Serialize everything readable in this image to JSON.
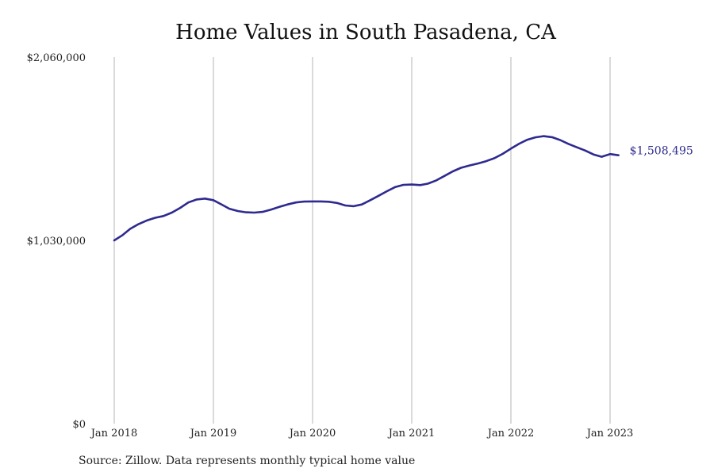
{
  "chart_data": {
    "type": "line",
    "title": "Home Values in South Pasadena, CA",
    "xlabel": "",
    "ylabel": "",
    "ylim": [
      0,
      2060000
    ],
    "y_ticks": [
      "$0",
      "$1,030,000",
      "$2,060,000"
    ],
    "x_ticks": [
      "Jan 2018",
      "Jan 2019",
      "Jan 2020",
      "Jan 2021",
      "Jan 2022",
      "Jan 2023"
    ],
    "grid": "vertical",
    "line_color": "#2e2a8f",
    "end_label": "$1,508,495",
    "x_dates": [
      "2018-01",
      "2018-02",
      "2018-03",
      "2018-04",
      "2018-05",
      "2018-06",
      "2018-07",
      "2018-08",
      "2018-09",
      "2018-10",
      "2018-11",
      "2018-12",
      "2019-01",
      "2019-02",
      "2019-03",
      "2019-04",
      "2019-05",
      "2019-06",
      "2019-07",
      "2019-08",
      "2019-09",
      "2019-10",
      "2019-11",
      "2019-12",
      "2020-01",
      "2020-02",
      "2020-03",
      "2020-04",
      "2020-05",
      "2020-06",
      "2020-07",
      "2020-08",
      "2020-09",
      "2020-10",
      "2020-11",
      "2020-12",
      "2021-01",
      "2021-02",
      "2021-03",
      "2021-04",
      "2021-05",
      "2021-06",
      "2021-07",
      "2021-08",
      "2021-09",
      "2021-10",
      "2021-11",
      "2021-12",
      "2022-01",
      "2022-02",
      "2022-03",
      "2022-04",
      "2022-05",
      "2022-06",
      "2022-07",
      "2022-08",
      "2022-09",
      "2022-10",
      "2022-11",
      "2022-12",
      "2023-01",
      "2023-02"
    ],
    "values": [
      1030000,
      1060000,
      1095000,
      1122000,
      1142000,
      1157000,
      1167000,
      1186000,
      1213000,
      1243000,
      1260000,
      1265000,
      1256000,
      1231000,
      1208000,
      1195000,
      1188000,
      1186000,
      1190000,
      1203000,
      1218000,
      1232000,
      1243000,
      1248000,
      1249000,
      1249000,
      1247000,
      1240000,
      1226000,
      1222000,
      1232000,
      1256000,
      1281000,
      1306000,
      1330000,
      1342000,
      1344000,
      1341000,
      1349000,
      1367000,
      1392000,
      1418000,
      1438000,
      1451000,
      1462000,
      1475000,
      1492000,
      1516000,
      1546000,
      1574000,
      1595000,
      1609000,
      1616000,
      1610000,
      1594000,
      1572000,
      1553000,
      1535000,
      1513000,
      1500000,
      1515000,
      1508495
    ]
  },
  "source_note": "Source: Zillow. Data represents monthly typical home value"
}
